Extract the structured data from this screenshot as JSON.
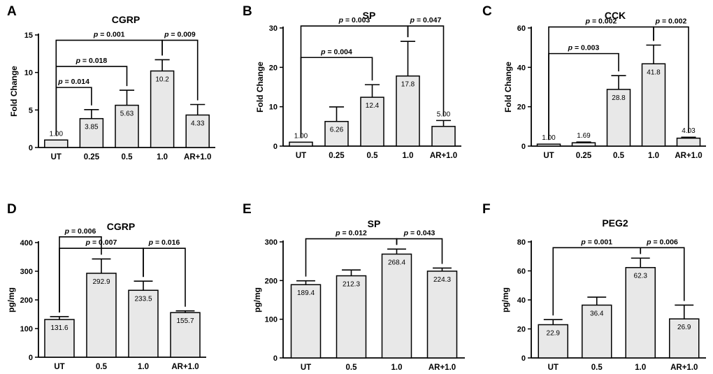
{
  "chart_data": [
    {
      "panel": "A",
      "type": "bar",
      "title": "CGRP",
      "ylabel": "Fold Change",
      "ylim": [
        0,
        15
      ],
      "yticks": [
        0,
        5,
        10,
        15
      ],
      "categories": [
        "UT",
        "0.25",
        "0.5",
        "1.0",
        "AR+1.0"
      ],
      "values": [
        1.0,
        3.85,
        5.63,
        10.2,
        4.33
      ],
      "value_labels": [
        "1.00",
        "3.85",
        "5.63",
        "10.2",
        "4.33"
      ],
      "errors": [
        0,
        1.2,
        2.0,
        1.5,
        1.4
      ],
      "comparisons": [
        {
          "from": 0,
          "to": 1,
          "label": "p = 0.014",
          "level": 8.0
        },
        {
          "from": 0,
          "to": 2,
          "label": "p = 0.018",
          "level": 10.8
        },
        {
          "from": 0,
          "to": 3,
          "label": "p = 0.001",
          "level": 14.3
        },
        {
          "from": 3,
          "to": 4,
          "label": "p = 0.009",
          "level": 14.3
        }
      ]
    },
    {
      "panel": "B",
      "type": "bar",
      "title": "SP",
      "ylabel": "Fold Change",
      "ylim": [
        0,
        30
      ],
      "yticks": [
        0,
        10,
        20,
        30
      ],
      "categories": [
        "UT",
        "0.25",
        "0.5",
        "1.0",
        "AR+1.0"
      ],
      "values": [
        1.0,
        6.26,
        12.4,
        17.8,
        5.0
      ],
      "value_labels": [
        "1.00",
        "6.26",
        "12.4",
        "17.8",
        "5.00"
      ],
      "errors": [
        0,
        3.7,
        3.2,
        8.8,
        1.5
      ],
      "comparisons": [
        {
          "from": 0,
          "to": 2,
          "label": "p = 0.004",
          "level": 22.5
        },
        {
          "from": 0,
          "to": 3,
          "label": "p = 0.003",
          "level": 30.5
        },
        {
          "from": 3,
          "to": 4,
          "label": "p = 0.047",
          "level": 30.5
        }
      ]
    },
    {
      "panel": "C",
      "type": "bar",
      "title": "CCK",
      "ylabel": "Fold Change",
      "ylim": [
        0,
        60
      ],
      "yticks": [
        0,
        20,
        40,
        60
      ],
      "categories": [
        "UT",
        "0.25",
        "0.5",
        "1.0",
        "AR+1.0"
      ],
      "values": [
        1.0,
        1.69,
        28.8,
        41.8,
        4.03
      ],
      "value_labels": [
        "1.00",
        "1.69",
        "28.8",
        "41.8",
        "4.03"
      ],
      "errors": [
        0,
        0.4,
        7.0,
        9.5,
        0.5
      ],
      "comparisons": [
        {
          "from": 0,
          "to": 2,
          "label": "p = 0.003",
          "level": 47.0
        },
        {
          "from": 0,
          "to": 3,
          "label": "p = 0.002",
          "level": 60.5
        },
        {
          "from": 3,
          "to": 4,
          "label": "p = 0.002",
          "level": 60.5
        }
      ]
    },
    {
      "panel": "D",
      "type": "bar",
      "title": "CGRP",
      "ylabel": "pg/mg",
      "ylim": [
        0,
        400
      ],
      "yticks": [
        0,
        100,
        200,
        300,
        400
      ],
      "categories": [
        "UT",
        "0.5",
        "1.0",
        "AR+1.0"
      ],
      "values": [
        131.6,
        292.9,
        233.5,
        155.7
      ],
      "value_labels": [
        "131.6",
        "292.9",
        "233.5",
        "155.7"
      ],
      "errors": [
        10,
        50,
        32,
        6
      ],
      "comparisons": [
        {
          "from": 0,
          "to": 1,
          "label": "p = 0.006",
          "level": 420
        },
        {
          "from": 0,
          "to": 2,
          "label": "p = 0.007",
          "level": 380
        },
        {
          "from": 2,
          "to": 3,
          "label": "p = 0.016",
          "level": 380
        }
      ]
    },
    {
      "panel": "E",
      "type": "bar",
      "title": "SP",
      "ylabel": "pg/mg",
      "ylim": [
        0,
        300
      ],
      "yticks": [
        0,
        100,
        200,
        300
      ],
      "categories": [
        "UT",
        "0.5",
        "1.0",
        "AR+1.0"
      ],
      "values": [
        189.4,
        212.3,
        268.4,
        224.3
      ],
      "value_labels": [
        "189.4",
        "212.3",
        "268.4",
        "224.3"
      ],
      "errors": [
        10,
        15,
        13,
        8
      ],
      "comparisons": [
        {
          "from": 0,
          "to": 2,
          "label": "p = 0.012",
          "level": 308
        },
        {
          "from": 2,
          "to": 3,
          "label": "p = 0.043",
          "level": 308
        }
      ]
    },
    {
      "panel": "F",
      "type": "bar",
      "title": "PEG2",
      "ylabel": "pg/mg",
      "ylim": [
        0,
        80
      ],
      "yticks": [
        0,
        20,
        40,
        60,
        80
      ],
      "categories": [
        "UT",
        "0.5",
        "1.0",
        "AR+1.0"
      ],
      "values": [
        22.9,
        36.4,
        62.3,
        26.9
      ],
      "value_labels": [
        "22.9",
        "36.4",
        "62.3",
        "26.9"
      ],
      "errors": [
        3.5,
        5.5,
        6.5,
        9.5
      ],
      "comparisons": [
        {
          "from": 0,
          "to": 2,
          "label": "p = 0.001",
          "level": 76
        },
        {
          "from": 2,
          "to": 3,
          "label": "p = 0.006",
          "level": 76
        }
      ]
    }
  ]
}
